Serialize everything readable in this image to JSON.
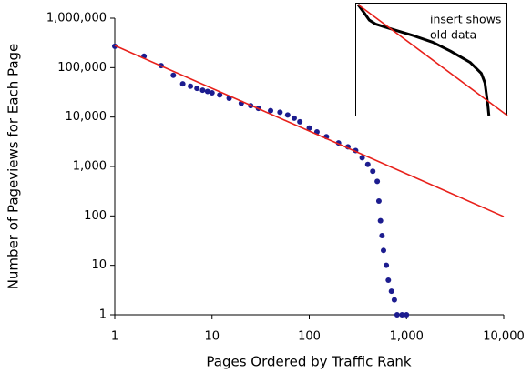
{
  "chart_data": [
    {
      "type": "scatter",
      "x_label": "Pages Ordered by Traffic Rank",
      "y_label": "Number of Pageviews for Each Page",
      "xscale": "log",
      "yscale": "log",
      "xlim": [
        1,
        10000
      ],
      "ylim": [
        1,
        1000000
      ],
      "xticks": [
        1,
        10,
        100,
        {
          "value": 1000,
          "label": "1,000"
        },
        {
          "value": 10000,
          "label": "10,000"
        }
      ],
      "yticks": [
        1,
        10,
        100,
        {
          "value": 1000,
          "label": "1,000"
        },
        {
          "value": 10000,
          "label": "10,000"
        },
        {
          "value": 100000,
          "label": "100,000"
        },
        {
          "value": 1000000,
          "label": "1,000,000"
        }
      ],
      "series": [
        {
          "type": "scatter",
          "color": "#1c1c8f",
          "x": [
            1,
            2,
            3,
            4,
            5,
            6,
            7,
            8,
            9,
            10,
            12,
            15,
            20,
            25,
            30,
            40,
            50,
            60,
            70,
            80,
            100,
            120,
            150,
            200,
            250,
            300,
            350,
            400,
            450,
            500,
            520,
            540,
            560,
            580,
            620,
            650,
            700,
            750,
            800,
            900,
            1000
          ],
          "values": [
            270000,
            170000,
            110000,
            70000,
            47000,
            42000,
            38000,
            35000,
            33000,
            31000,
            28000,
            24000,
            19000,
            17000,
            15000,
            13500,
            12500,
            11000,
            9500,
            8000,
            6000,
            5000,
            4000,
            3000,
            2500,
            2100,
            1500,
            1100,
            800,
            500,
            200,
            80,
            40,
            20,
            10,
            5,
            3,
            2,
            1,
            1,
            1
          ]
        },
        {
          "type": "line",
          "color": "#e8201a",
          "x": [
            1,
            10000
          ],
          "values": [
            280000,
            97
          ]
        }
      ]
    },
    {
      "type": "line",
      "annotation": [
        "insert shows",
        "old data"
      ],
      "xscale": "log",
      "yscale": "log",
      "xlim": [
        1,
        10000
      ],
      "ylim": [
        10,
        1000000
      ],
      "series": [
        {
          "type": "line",
          "color": "#000000",
          "x": [
            1,
            1.5,
            2,
            3,
            5,
            10,
            30,
            100,
            300,
            1000,
            2000,
            2500,
            3000,
            3200
          ],
          "values": [
            1000000,
            400000,
            200000,
            130000,
            100000,
            70000,
            40000,
            20000,
            8000,
            2500,
            800,
            300,
            30,
            10
          ]
        },
        {
          "type": "line",
          "color": "#e8201a",
          "x": [
            1,
            10000
          ],
          "values": [
            1000000,
            10
          ]
        }
      ]
    }
  ]
}
